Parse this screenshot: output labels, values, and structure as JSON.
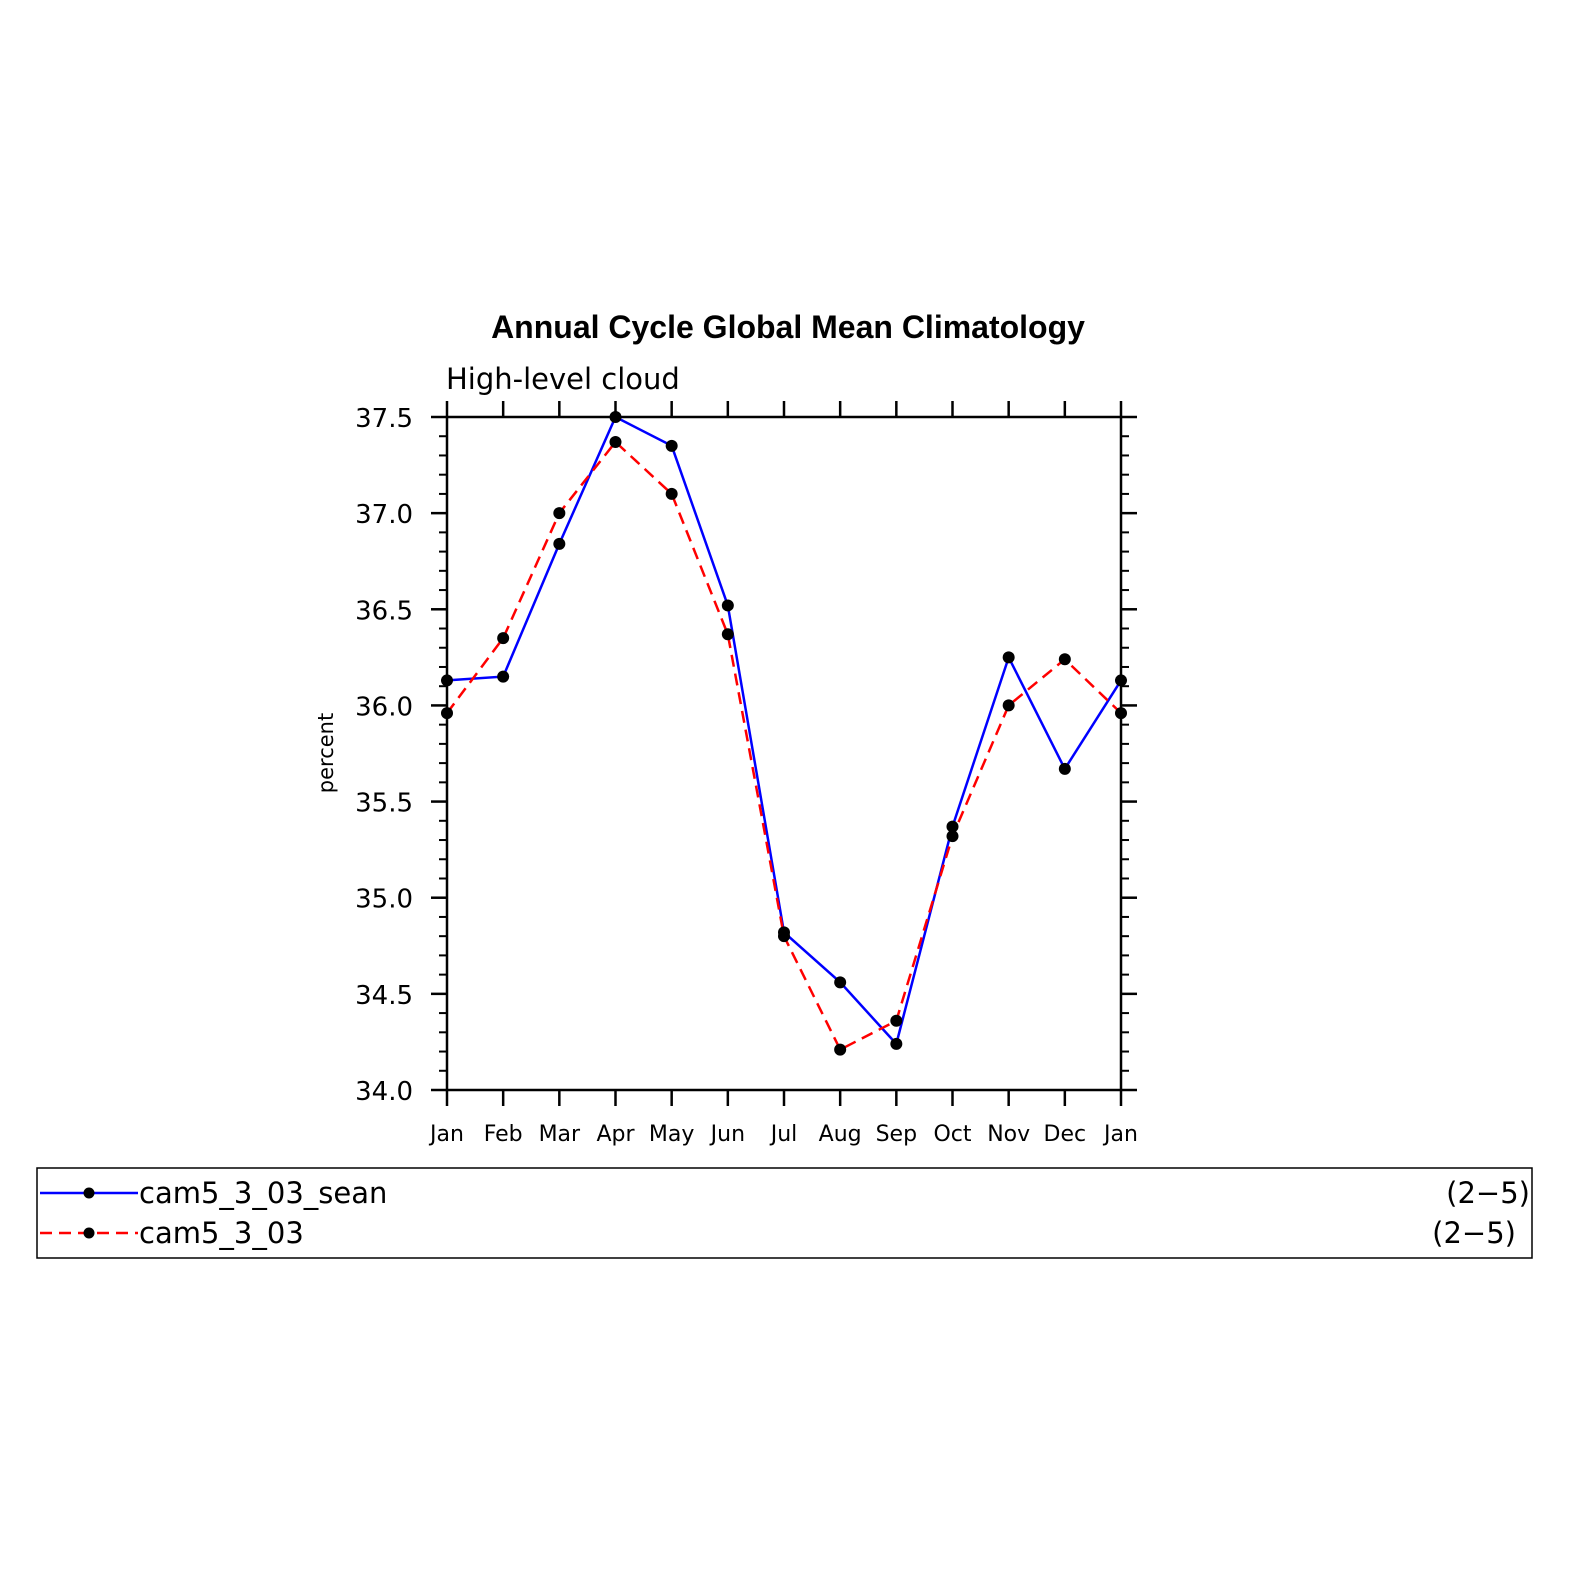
{
  "chart_data": {
    "type": "line",
    "title": "Annual Cycle Global Mean Climatology",
    "subtitle": "High-level cloud",
    "ylabel": "percent",
    "xlabel": "",
    "categories": [
      "Jan",
      "Feb",
      "Mar",
      "Apr",
      "May",
      "Jun",
      "Jul",
      "Aug",
      "Sep",
      "Oct",
      "Nov",
      "Dec",
      "Jan"
    ],
    "ylim": [
      34.0,
      37.5
    ],
    "yticks": [
      "34.0",
      "34.5",
      "35.0",
      "35.5",
      "36.0",
      "36.5",
      "37.0",
      "37.5"
    ],
    "grid": false,
    "legend_position": "bottom",
    "series": [
      {
        "name": "cam5_3_03_sean",
        "range_label": "(2−5)",
        "color": "#0000ff",
        "dashed": false,
        "values": [
          36.13,
          36.15,
          36.84,
          37.5,
          37.35,
          36.52,
          34.82,
          34.56,
          34.24,
          35.37,
          36.25,
          35.67,
          36.13
        ]
      },
      {
        "name": "cam5_3_03",
        "range_label": "(2−5)",
        "color": "#ff0000",
        "dashed": true,
        "values": [
          35.96,
          36.35,
          37.0,
          37.37,
          37.1,
          36.37,
          34.8,
          34.21,
          34.36,
          35.32,
          36.0,
          36.24,
          35.96
        ]
      }
    ]
  }
}
